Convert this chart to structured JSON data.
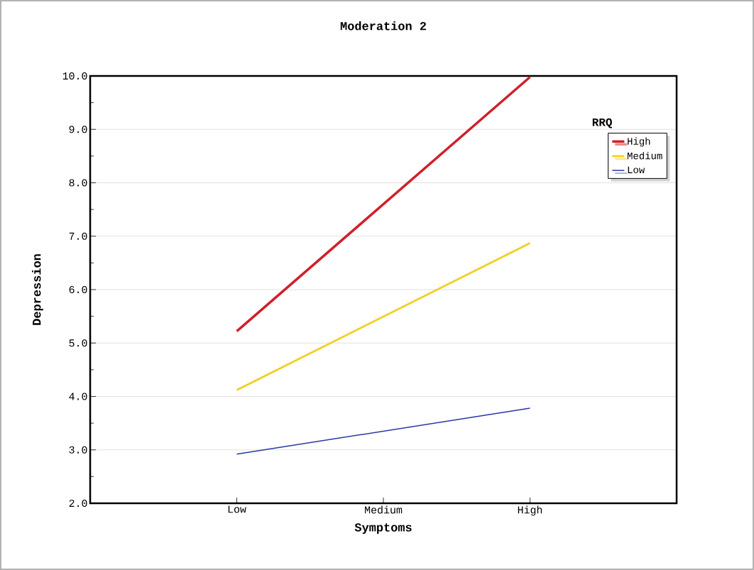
{
  "chart_data": {
    "type": "line",
    "title": "Moderation 2",
    "xlabel": "Symptoms",
    "ylabel": "Depression",
    "legend_title": "RRQ",
    "categories": [
      "Low",
      "Medium",
      "High"
    ],
    "series": [
      {
        "name": "High",
        "color": "#d0202a",
        "values": [
          5.22,
          null,
          9.98
        ]
      },
      {
        "name": "Medium",
        "color": "#f0d020",
        "values": [
          4.12,
          null,
          6.87
        ]
      },
      {
        "name": "Low",
        "color": "#2838a0",
        "values": [
          2.92,
          null,
          3.78
        ]
      }
    ],
    "ylim": [
      2,
      10
    ],
    "yticks": [
      {
        "value": 2,
        "label": "2.0"
      },
      {
        "value": 3,
        "label": "3.0"
      },
      {
        "value": 4,
        "label": "4.0"
      },
      {
        "value": 5,
        "label": "5.0"
      },
      {
        "value": 6,
        "label": "6.0"
      },
      {
        "value": 7,
        "label": "7.0"
      },
      {
        "value": 8,
        "label": "8.0"
      },
      {
        "value": 9,
        "label": "9.0"
      },
      {
        "value": 10,
        "label": "10.0"
      }
    ],
    "grid": "y",
    "legend": "top right",
    "marker": "none",
    "line_style": "solid"
  }
}
